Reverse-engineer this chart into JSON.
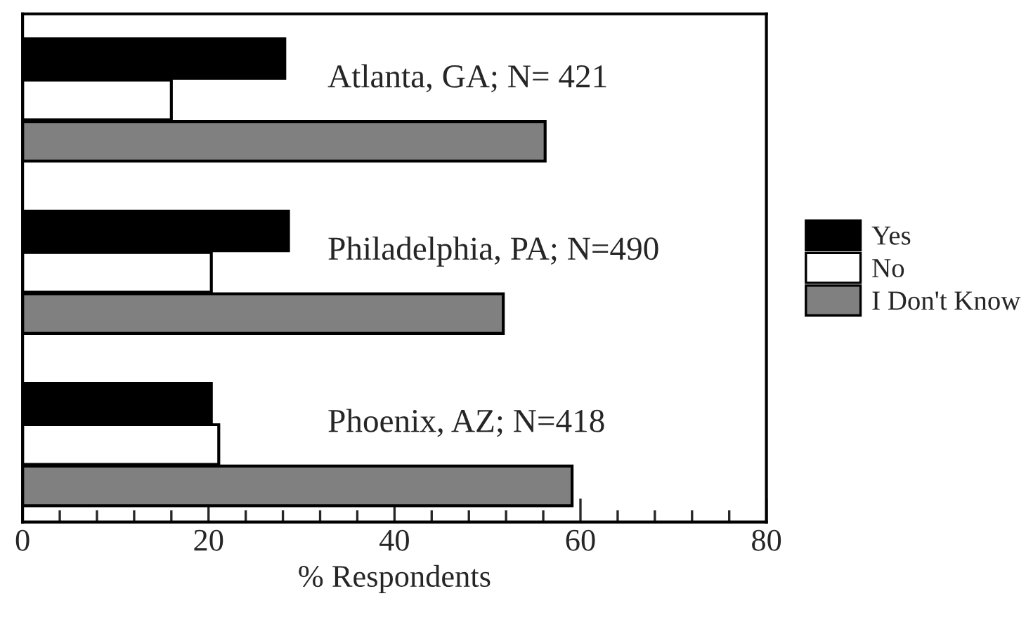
{
  "chart_data": {
    "type": "bar",
    "orientation": "horizontal",
    "xlabel": "% Respondents",
    "categories": [
      "Atlanta, GA; N= 421",
      "Philadelphia, PA; N=490",
      "Phoenix, AZ; N=418"
    ],
    "series": [
      {
        "name": "Yes",
        "color": "#000000",
        "values": [
          28.2,
          28.6,
          20.3
        ]
      },
      {
        "name": "No",
        "color": "#ffffff",
        "values": [
          16.0,
          20.3,
          21.1
        ]
      },
      {
        "name": "I Don't Know",
        "color": "#808080",
        "values": [
          56.2,
          51.7,
          59.1
        ]
      }
    ],
    "xlim": [
      0,
      80
    ],
    "xticks": [
      0,
      {
        "value": 4,
        "label": null
      },
      {
        "value": 8,
        "label": null
      },
      {
        "value": 12,
        "label": null
      },
      {
        "value": 16,
        "label": null
      },
      20,
      {
        "value": 24,
        "label": null
      },
      {
        "value": 28,
        "label": null
      },
      {
        "value": 32,
        "label": null
      },
      {
        "value": 36,
        "label": null
      },
      40,
      {
        "value": 44,
        "label": null
      },
      {
        "value": 48,
        "label": null
      },
      {
        "value": 52,
        "label": null
      },
      {
        "value": 56,
        "label": null
      },
      60,
      {
        "value": 64,
        "label": null
      },
      {
        "value": 68,
        "label": null
      },
      {
        "value": 72,
        "label": null
      },
      {
        "value": 76,
        "label": null
      },
      80
    ],
    "tick_labels": "x",
    "grid": false,
    "legend": "right"
  }
}
